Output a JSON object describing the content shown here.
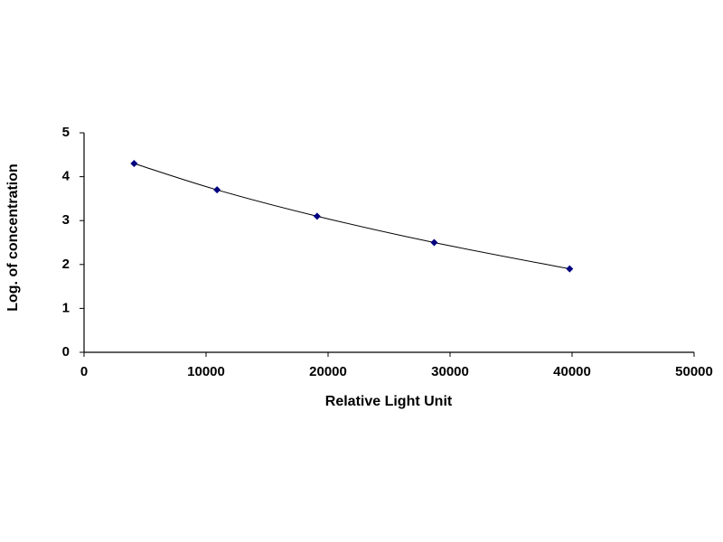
{
  "chart_data": {
    "type": "scatter",
    "x_label": "Relative Light Unit",
    "y_label": "Log. of concentration",
    "x": [
      4100,
      10900,
      19100,
      28700,
      39800
    ],
    "values": [
      4.3,
      3.7,
      3.1,
      2.5,
      1.9
    ],
    "color": "#000080",
    "line_color": "#000000",
    "smooth_line": true,
    "grid": false,
    "xlim": [
      0,
      50000
    ],
    "xticks": [
      0,
      10000,
      20000,
      30000,
      40000,
      50000
    ],
    "ylim": [
      0,
      5
    ],
    "yticks": [
      0,
      1,
      2,
      3,
      4,
      5
    ]
  }
}
